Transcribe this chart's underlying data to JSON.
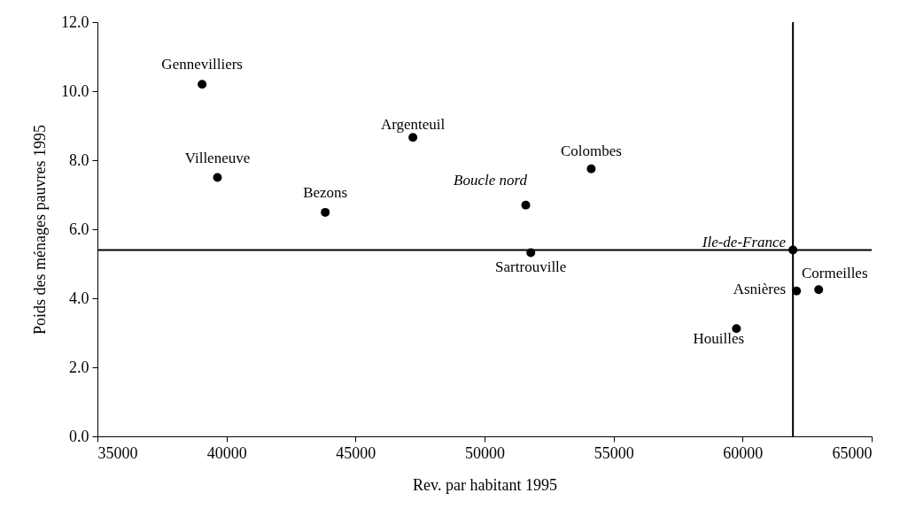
{
  "chart_data": {
    "type": "scatter",
    "xlabel": "Rev. par habitant 1995",
    "ylabel": "Poids des ménages pauvres 1995",
    "x": [
      39056,
      39650,
      43827,
      47224,
      54133,
      51597,
      51793,
      61950,
      62088,
      62948,
      59760
    ],
    "series": [
      {
        "color": "#000000",
        "values": [
          10.2,
          7.5,
          6.49,
          8.66,
          7.75,
          6.7,
          5.32,
          5.4,
          4.21,
          4.25,
          3.12
        ]
      }
    ],
    "marker": "circle",
    "xlim": [
      35000,
      65000
    ],
    "xticks": [
      35000,
      40000,
      45000,
      50000,
      55000,
      60000,
      65000
    ],
    "ylim": [
      0,
      12
    ],
    "yticks": [
      {
        "value": 0,
        "label": "0.0"
      },
      {
        "value": 2,
        "label": "2.0"
      },
      {
        "value": 4,
        "label": "4.0"
      },
      {
        "value": 6,
        "label": "6.0"
      },
      {
        "value": 8,
        "label": "8.0"
      },
      {
        "value": 10,
        "label": "10.0"
      },
      {
        "value": 12,
        "label": "12.0"
      }
    ],
    "ref_lines": [
      {
        "axis": "y",
        "value": 5.4,
        "color": "#000000"
      },
      {
        "axis": "x",
        "value": 61950,
        "color": "#000000"
      }
    ],
    "annotations": [
      {
        "text": "Gennevilliers",
        "x": 39056,
        "y": 10.2
      },
      {
        "text": "Villeneuve",
        "x": 39650,
        "y": 7.5
      },
      {
        "text": "Bezons",
        "x": 43827,
        "y": 6.49
      },
      {
        "text": "Argenteuil",
        "x": 47224,
        "y": 8.66
      },
      {
        "text": "Colombes",
        "x": 54133,
        "y": 7.75
      },
      {
        "text": "Boucle nord",
        "x": 51597,
        "y": 6.7
      },
      {
        "text": "Sartrouville",
        "x": 51793,
        "y": 5.32
      },
      {
        "text": "Ile-de-France",
        "x": 61950,
        "y": 5.4
      },
      {
        "text": "Asnières",
        "x": 62088,
        "y": 4.21
      },
      {
        "text": "Cormeilles",
        "x": 62948,
        "y": 4.25
      },
      {
        "text": "Houilles",
        "x": 59760,
        "y": 3.12
      }
    ]
  }
}
